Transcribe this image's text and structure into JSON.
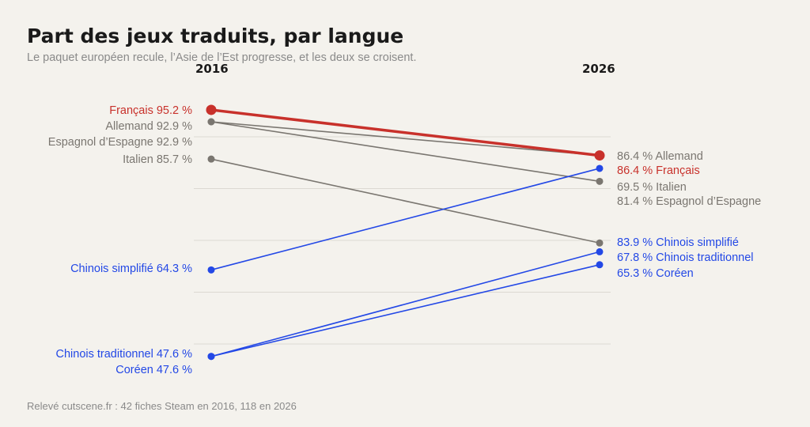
{
  "title": "Part des jeux traduits, par langue",
  "subtitle": "Le paquet européen recule, l’Asie de l’Est progresse, et les deux se croisent.",
  "footer": "Relevé cutscene.fr : 42 fiches Steam en 2016, 118 en 2026",
  "colors": {
    "european": "#7a7670",
    "asian": "#2348e6",
    "highlight": "#c8312b",
    "grid": "#dcd9d2"
  },
  "chart_data": {
    "type": "line",
    "subtype": "slope",
    "x": [
      "2016",
      "2026"
    ],
    "unit": "%",
    "ylim": [
      40,
      100
    ],
    "grid": true,
    "series": [
      {
        "name": "Français",
        "values": [
          95.2,
          86.4
        ],
        "group": "highlight",
        "label_left": "Français  95.2 %",
        "label_right": "86.4 %  Français"
      },
      {
        "name": "Allemand",
        "values": [
          92.9,
          86.4
        ],
        "group": "european",
        "label_left": "Allemand  92.9 %",
        "label_right": "86.4 %  Allemand"
      },
      {
        "name": "Espagnol d’Espagne",
        "values": [
          92.9,
          81.4
        ],
        "group": "european",
        "label_left": "Espagnol d’Espagne  92.9 %",
        "label_right": "81.4 %  Espagnol d’Espagne"
      },
      {
        "name": "Italien",
        "values": [
          85.7,
          69.5
        ],
        "group": "european",
        "label_left": "Italien  85.7 %",
        "label_right": "69.5 %  Italien"
      },
      {
        "name": "Chinois simplifié",
        "values": [
          64.3,
          83.9
        ],
        "group": "asian",
        "label_left": "Chinois simplifié  64.3 %",
        "label_right": "83.9 %  Chinois simplifié"
      },
      {
        "name": "Chinois traditionnel",
        "values": [
          47.6,
          67.8
        ],
        "group": "asian",
        "label_left": "Chinois traditionnel  47.6 %",
        "label_right": "67.8 %  Chinois traditionnel"
      },
      {
        "name": "Coréen",
        "values": [
          47.6,
          65.3
        ],
        "group": "asian",
        "label_left": "Coréen  47.6 %",
        "label_right": "65.3 %  Coréen"
      }
    ]
  }
}
